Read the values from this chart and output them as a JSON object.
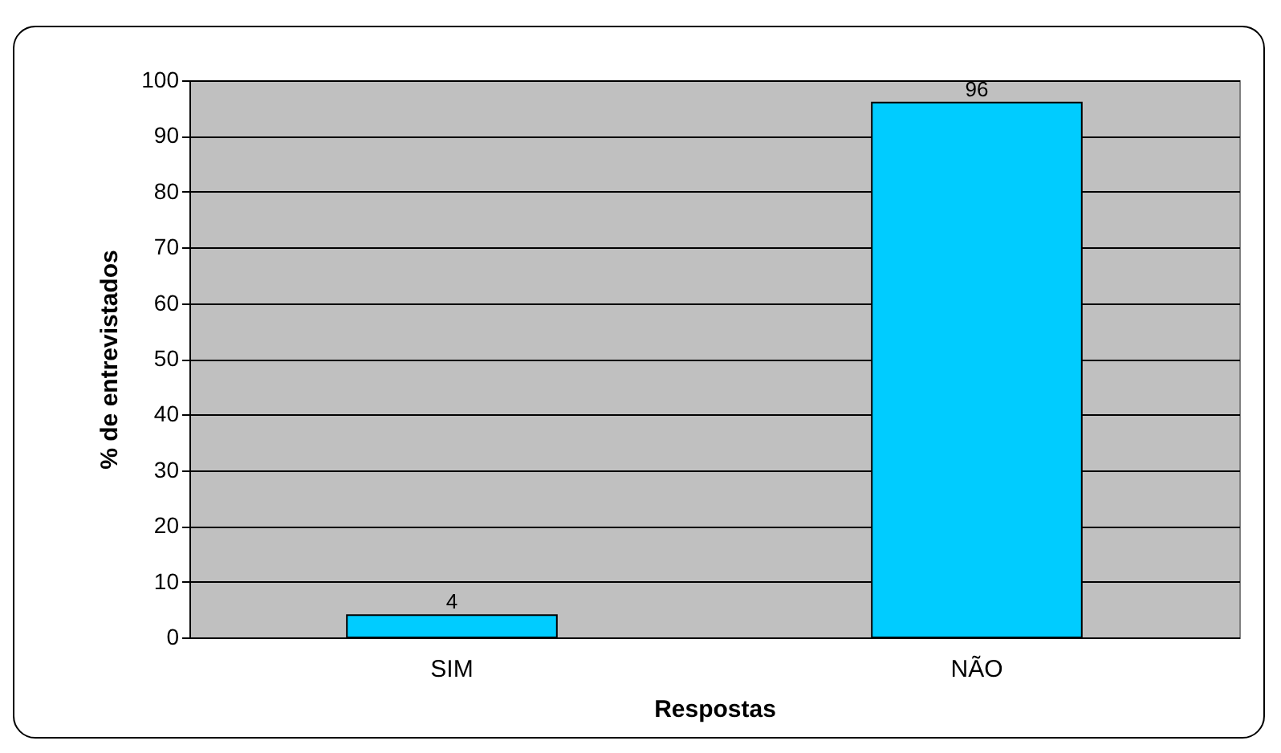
{
  "chart_data": {
    "type": "bar",
    "xlabel": "Respostas",
    "ylabel": "% de entrevistados",
    "categories": [
      "SIM",
      "NÃO"
    ],
    "values": [
      4,
      96
    ],
    "color": "#00ccff",
    "ylim": [
      0,
      100
    ],
    "yticks": [
      0,
      10,
      20,
      30,
      40,
      50,
      60,
      70,
      80,
      90,
      100
    ],
    "grid": "y",
    "data_labels": true
  }
}
